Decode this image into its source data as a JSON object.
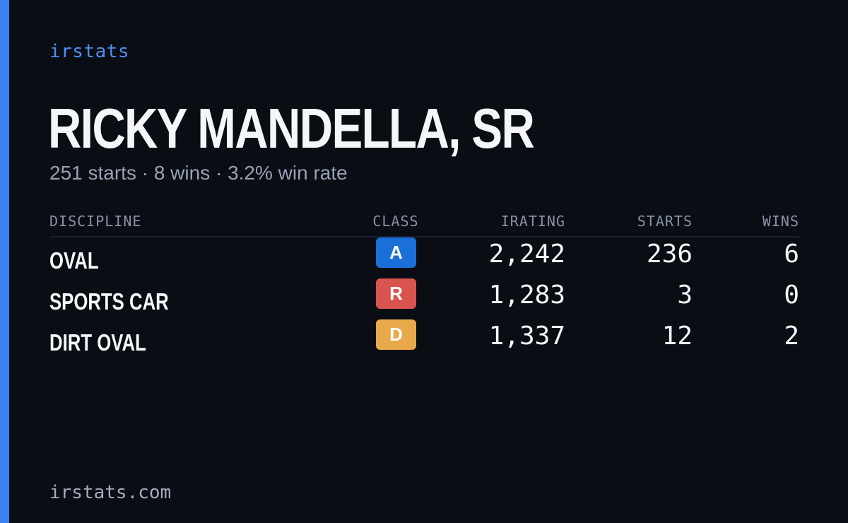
{
  "brand": "irstats",
  "driver": {
    "name": "RICKY MANDELLA, SR",
    "summary": "251 starts · 8 wins · 3.2% win rate"
  },
  "table": {
    "headers": {
      "discipline": "DISCIPLINE",
      "class": "CLASS",
      "irating": "IRATING",
      "starts": "STARTS",
      "wins": "WINS"
    },
    "rows": [
      {
        "discipline": "OVAL",
        "class": "A",
        "class_color": "#1a6fd9",
        "irating": "2,242",
        "starts": "236",
        "wins": "6"
      },
      {
        "discipline": "SPORTS CAR",
        "class": "R",
        "class_color": "#d9534f",
        "irating": "1,283",
        "starts": "3",
        "wins": "0"
      },
      {
        "discipline": "DIRT OVAL",
        "class": "D",
        "class_color": "#e8a94a",
        "irating": "1,337",
        "starts": "12",
        "wins": "2"
      }
    ]
  },
  "footer": "irstats.com",
  "colors": {
    "accent": "#3b82f6",
    "background": "#0a0d14"
  }
}
